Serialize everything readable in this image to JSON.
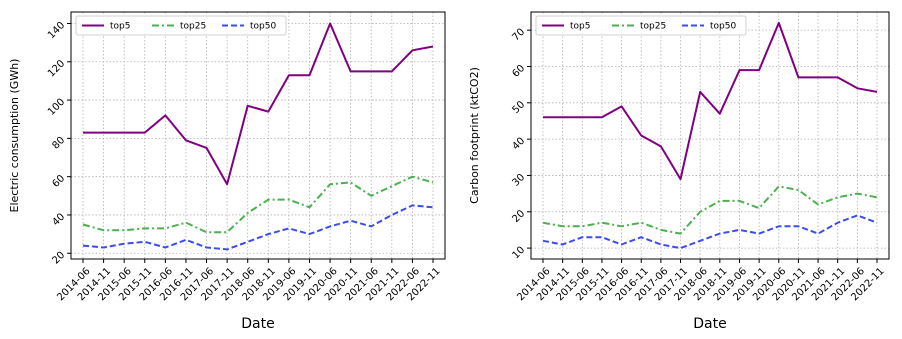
{
  "chart_data": [
    {
      "type": "line",
      "xlabel": "Date",
      "ylabel": "Electric consumption (GWh)",
      "ylim": [
        17,
        146
      ],
      "yticks": [
        20,
        40,
        60,
        80,
        100,
        120,
        140
      ],
      "x": [
        "2014-06",
        "2014-11",
        "2015-06",
        "2015-11",
        "2016-06",
        "2016-11",
        "2017-06",
        "2017-11",
        "2018-06",
        "2018-11",
        "2019-06",
        "2019-11",
        "2020-06",
        "2020-11",
        "2021-06",
        "2021-11",
        "2022-06",
        "2022-11"
      ],
      "grid": true,
      "legend": "top-left",
      "series": [
        {
          "name": "top5",
          "color": "#800080",
          "dash": "solid",
          "values": [
            83,
            83,
            83,
            83,
            92,
            79,
            75,
            56,
            97,
            94,
            113,
            113,
            140,
            115,
            115,
            115,
            126,
            128
          ]
        },
        {
          "name": "top25",
          "color": "#4caf50",
          "dash": "dashdot",
          "values": [
            35,
            32,
            32,
            33,
            33,
            36,
            31,
            31,
            41,
            48,
            48,
            44,
            56,
            57,
            50,
            55,
            60,
            57
          ]
        },
        {
          "name": "top50",
          "color": "#3b4cf0",
          "dash": "dashed",
          "values": [
            24,
            23,
            25,
            26,
            23,
            27,
            23,
            22,
            26,
            30,
            33,
            30,
            34,
            37,
            34,
            40,
            45,
            44
          ]
        }
      ]
    },
    {
      "type": "line",
      "xlabel": "Date",
      "ylabel": "Carbon footprint (ktCO2)",
      "ylim": [
        7,
        75
      ],
      "yticks": [
        10,
        20,
        30,
        40,
        50,
        60,
        70
      ],
      "x": [
        "2014-06",
        "2014-11",
        "2015-06",
        "2015-11",
        "2016-06",
        "2016-11",
        "2017-06",
        "2017-11",
        "2018-06",
        "2018-11",
        "2019-06",
        "2019-11",
        "2020-06",
        "2020-11",
        "2021-06",
        "2021-11",
        "2022-06",
        "2022-11"
      ],
      "grid": true,
      "legend": "top-left",
      "series": [
        {
          "name": "top5",
          "color": "#800080",
          "dash": "solid",
          "values": [
            46,
            46,
            46,
            46,
            49,
            41,
            38,
            29,
            53,
            47,
            59,
            59,
            72,
            57,
            57,
            57,
            54,
            53
          ]
        },
        {
          "name": "top25",
          "color": "#4caf50",
          "dash": "dashdot",
          "values": [
            17,
            16,
            16,
            17,
            16,
            17,
            15,
            14,
            20,
            23,
            23,
            21,
            27,
            26,
            22,
            24,
            25,
            24
          ]
        },
        {
          "name": "top50",
          "color": "#3b4cf0",
          "dash": "dashed",
          "values": [
            12,
            11,
            13,
            13,
            11,
            13,
            11,
            10,
            12,
            14,
            15,
            14,
            16,
            16,
            14,
            17,
            19,
            17
          ]
        }
      ]
    }
  ]
}
